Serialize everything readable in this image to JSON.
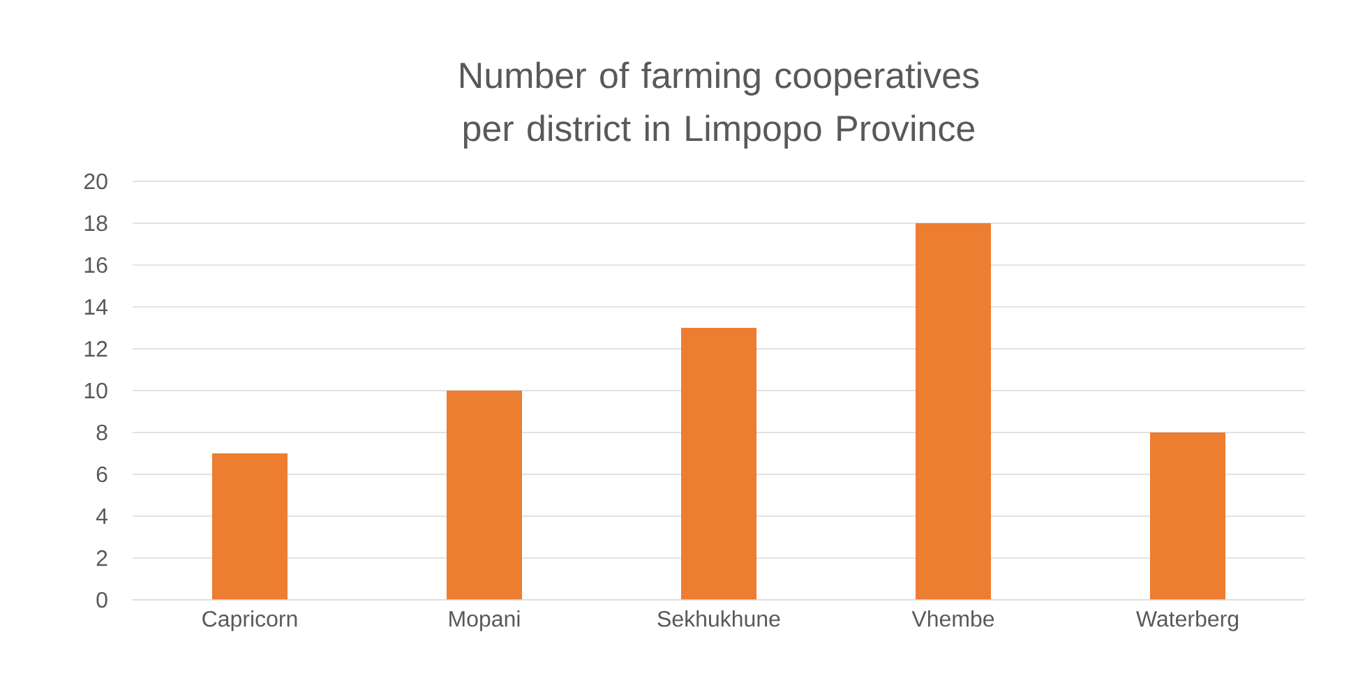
{
  "chart_data": {
    "type": "bar",
    "title": "Number of farming cooperatives per district in Limpopo Province",
    "categories": [
      "Capricorn",
      "Mopani",
      "Sekhukhune",
      "Vhembe",
      "Waterberg"
    ],
    "values": [
      7,
      10,
      13,
      18,
      8
    ],
    "color": "#ed7d31",
    "ylim": [
      0,
      20
    ],
    "yticks": [
      0,
      2,
      4,
      6,
      8,
      10,
      12,
      14,
      16,
      18,
      20
    ],
    "grid": "y"
  }
}
